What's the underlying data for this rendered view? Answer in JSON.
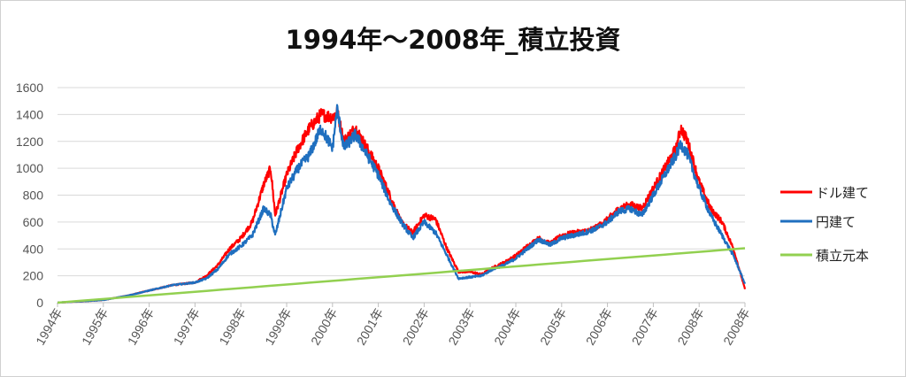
{
  "chart_data": {
    "type": "line",
    "title": "1994年～2008年_積立投資",
    "xlabel": "",
    "ylabel": "",
    "ylim": [
      0,
      1600
    ],
    "yticks": [
      0,
      200,
      400,
      600,
      800,
      1000,
      1200,
      1400,
      1600
    ],
    "xticks": [
      "1994年",
      "1995年",
      "1996年",
      "1997年",
      "1998年",
      "1999年",
      "2000年",
      "2001年",
      "2002年",
      "2003年",
      "2004年",
      "2005年",
      "2006年",
      "2007年",
      "2008年",
      "2008年"
    ],
    "grid": true,
    "legend_position": "right",
    "colors": {
      "usd": "#ff0000",
      "jpy": "#1f6fbf",
      "principal": "#92d050"
    },
    "x": [
      1994.0,
      1994.5,
      1995.0,
      1995.5,
      1996.0,
      1996.5,
      1997.0,
      1997.25,
      1997.5,
      1997.75,
      1998.0,
      1998.25,
      1998.5,
      1998.65,
      1998.75,
      1999.0,
      1999.25,
      1999.5,
      1999.75,
      2000.0,
      2000.1,
      2000.25,
      2000.5,
      2000.75,
      2001.0,
      2001.25,
      2001.5,
      2001.75,
      2002.0,
      2002.25,
      2002.5,
      2002.75,
      2003.0,
      2003.25,
      2003.5,
      2003.75,
      2004.0,
      2004.25,
      2004.5,
      2004.75,
      2005.0,
      2005.25,
      2005.5,
      2005.75,
      2006.0,
      2006.25,
      2006.5,
      2006.75,
      2007.0,
      2007.25,
      2007.5,
      2007.6,
      2007.75,
      2008.0,
      2008.25,
      2008.5,
      2008.75,
      2009.0
    ],
    "series": [
      {
        "name": "ドル建て",
        "values": [
          0,
          10,
          20,
          50,
          90,
          130,
          150,
          200,
          280,
          400,
          480,
          600,
          880,
          1000,
          650,
          950,
          1150,
          1300,
          1400,
          1380,
          1420,
          1200,
          1300,
          1150,
          1000,
          800,
          600,
          520,
          650,
          620,
          400,
          230,
          230,
          210,
          260,
          300,
          350,
          420,
          480,
          440,
          500,
          520,
          530,
          560,
          620,
          700,
          730,
          700,
          850,
          1000,
          1150,
          1300,
          1200,
          900,
          700,
          600,
          400,
          100
        ]
      },
      {
        "name": "円建て",
        "values": [
          0,
          10,
          20,
          50,
          90,
          130,
          150,
          180,
          250,
          360,
          420,
          500,
          700,
          650,
          500,
          850,
          1000,
          1100,
          1300,
          1150,
          1440,
          1150,
          1250,
          1100,
          950,
          750,
          600,
          480,
          600,
          520,
          350,
          180,
          190,
          200,
          250,
          280,
          330,
          400,
          470,
          430,
          480,
          500,
          520,
          550,
          600,
          680,
          700,
          650,
          800,
          950,
          1100,
          1180,
          1100,
          850,
          650,
          500,
          350,
          140
        ]
      },
      {
        "name": "積立元本",
        "values": [
          0,
          13.5,
          27,
          40.5,
          54,
          67.5,
          81,
          87.75,
          94.5,
          101.25,
          108,
          114.75,
          121.5,
          125.55,
          128.25,
          135,
          141.75,
          148.5,
          155.25,
          162,
          164.7,
          168.75,
          175.5,
          182.25,
          189,
          195.75,
          202.5,
          209.25,
          216,
          222.75,
          229.5,
          236.25,
          243,
          249.75,
          256.5,
          263.25,
          270,
          276.75,
          283.5,
          290.25,
          297,
          303.75,
          310.5,
          317.25,
          324,
          330.75,
          337.5,
          344.25,
          351,
          357.75,
          364.5,
          367.2,
          371.25,
          378,
          384.75,
          391.5,
          398.25,
          405
        ]
      }
    ]
  }
}
